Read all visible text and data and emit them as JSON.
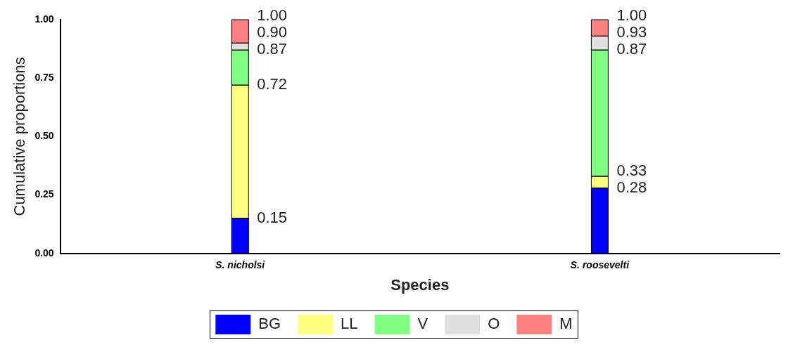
{
  "chart_data": {
    "type": "bar",
    "stacked": true,
    "xlabel": "Species",
    "ylabel": "Cumulative proportions",
    "categories": [
      "S. nicholsi",
      "S. roosevelti"
    ],
    "series": [
      {
        "name": "BG",
        "color": "#0000ff",
        "values": [
          0.15,
          0.28
        ]
      },
      {
        "name": "LL",
        "color": "#ffff80",
        "values": [
          0.57,
          0.05
        ]
      },
      {
        "name": "V",
        "color": "#80ff80",
        "values": [
          0.15,
          0.54
        ]
      },
      {
        "name": "O",
        "color": "#e0e0e0",
        "values": [
          0.03,
          0.06
        ]
      },
      {
        "name": "M",
        "color": "#ff8080",
        "values": [
          0.1,
          0.07
        ]
      }
    ],
    "annotations": [
      {
        "text": "0.15",
        "x": "S. nicholsi",
        "y": 0.15
      },
      {
        "text": "0.72",
        "x": "S. nicholsi",
        "y": 0.72
      },
      {
        "text": "0.87",
        "x": "S. nicholsi",
        "y": 0.87
      },
      {
        "text": "0.90",
        "x": "S. nicholsi",
        "y": 0.9
      },
      {
        "text": "1.00",
        "x": "S. nicholsi",
        "y": 1.0
      },
      {
        "text": "0.28",
        "x": "S. roosevelti",
        "y": 0.28
      },
      {
        "text": "0.33",
        "x": "S. roosevelti",
        "y": 0.33
      },
      {
        "text": "0.87",
        "x": "S. roosevelti",
        "y": 0.87
      },
      {
        "text": "0.93",
        "x": "S. roosevelti",
        "y": 0.93
      },
      {
        "text": "1.00",
        "x": "S. roosevelti",
        "y": 1.0
      }
    ],
    "ylim": [
      0,
      1
    ],
    "yticks": [
      {
        "value": 0,
        "label": "0.00"
      },
      {
        "value": 0.25,
        "label": "0.25"
      },
      {
        "value": 0.5,
        "label": "0.50"
      },
      {
        "value": 0.75,
        "label": "0.75"
      },
      {
        "value": 1,
        "label": "1.00"
      }
    ],
    "legend": "bottom"
  }
}
